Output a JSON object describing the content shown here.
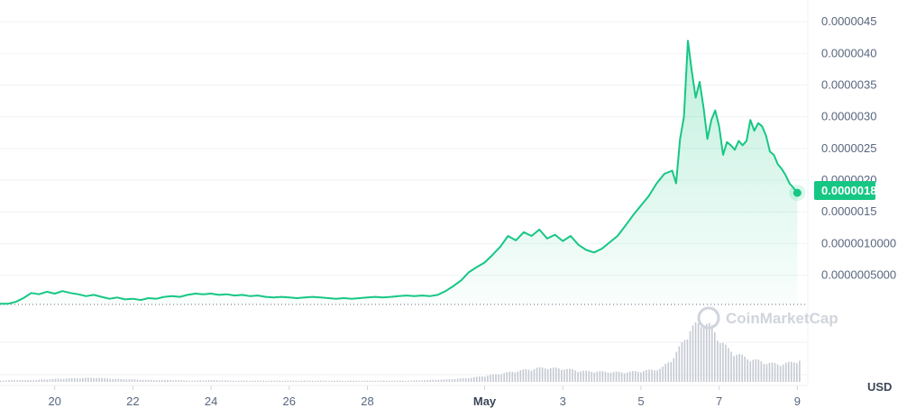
{
  "chart_data": {
    "type": "area",
    "currency_label": "USD",
    "watermark": "CoinMarketCap",
    "current_price_label": "0.0000018",
    "colors": {
      "line": "#16c784",
      "fill_top": "#16c784",
      "volume": "#c5c9d2",
      "badge": "#16c784"
    },
    "y_ticks": [
      "0.0000045",
      "0.0000040",
      "0.0000035",
      "0.0000030",
      "0.0000025",
      "0.0000020",
      "0.0000015",
      "0.0000010000",
      "0.0000005000"
    ],
    "y_tick_values": [
      4.5e-06,
      4e-06,
      3.5e-06,
      3e-06,
      2.5e-06,
      2e-06,
      1.5e-06,
      1e-06,
      5e-07
    ],
    "ylim": [
      4e-08,
      4.7e-06
    ],
    "x_ticks": [
      {
        "label": "20",
        "day": 20
      },
      {
        "label": "22",
        "day": 22
      },
      {
        "label": "24",
        "day": 24
      },
      {
        "label": "26",
        "day": 26
      },
      {
        "label": "28",
        "day": 28
      },
      {
        "label": "May",
        "day": 31,
        "bold": true
      },
      {
        "label": "3",
        "day": 33
      },
      {
        "label": "5",
        "day": 35
      },
      {
        "label": "7",
        "day": 37
      },
      {
        "label": "9",
        "day": 39
      }
    ],
    "xlim": [
      18.6,
      39.2
    ],
    "x_unit": "day (April 18 – May 9, May 1 = 31)",
    "series": [
      {
        "values_x": [
          18.6,
          18.8,
          19.0,
          19.2,
          19.4,
          19.6,
          19.8,
          20.0,
          20.2,
          20.4,
          20.6,
          20.8,
          21.0,
          21.2,
          21.4,
          21.6,
          21.8,
          22.0,
          22.2,
          22.4,
          22.6,
          22.8,
          23.0,
          23.2,
          23.4,
          23.6,
          23.8,
          24.0,
          24.2,
          24.4,
          24.6,
          24.8,
          25.0,
          25.2,
          25.4,
          25.6,
          25.8,
          26.0,
          26.2,
          26.4,
          26.6,
          26.8,
          27.0,
          27.2,
          27.4,
          27.6,
          27.8,
          28.0,
          28.2,
          28.4,
          28.6,
          28.8,
          29.0,
          29.2,
          29.4,
          29.6,
          29.8,
          30.0,
          30.2,
          30.4,
          30.6,
          30.8,
          31.0,
          31.2,
          31.4,
          31.6,
          31.8,
          32.0,
          32.2,
          32.4,
          32.6,
          32.8,
          33.0,
          33.2,
          33.4,
          33.6,
          33.8,
          34.0,
          34.2,
          34.4,
          34.6,
          34.8,
          35.0,
          35.2,
          35.4,
          35.6,
          35.8,
          35.9,
          36.0,
          36.1,
          36.2,
          36.3,
          36.4,
          36.5,
          36.6,
          36.7,
          36.8,
          36.9,
          37.0,
          37.1,
          37.2,
          37.3,
          37.4,
          37.5,
          37.6,
          37.7,
          37.8,
          37.9,
          38.0,
          38.1,
          38.2,
          38.3,
          38.4,
          38.5,
          38.6,
          38.7,
          38.8,
          38.9,
          39.0
        ],
        "values_y": [
          5e-08,
          5e-08,
          8e-08,
          1.4e-07,
          2.2e-07,
          2e-07,
          2.4e-07,
          2.1e-07,
          2.5e-07,
          2.2e-07,
          2e-07,
          1.7e-07,
          1.9e-07,
          1.6e-07,
          1.3e-07,
          1.5e-07,
          1.2e-07,
          1.3e-07,
          1.1e-07,
          1.4e-07,
          1.3e-07,
          1.6e-07,
          1.7e-07,
          1.6e-07,
          1.9e-07,
          2.1e-07,
          2e-07,
          2.1e-07,
          1.9e-07,
          2e-07,
          1.8e-07,
          1.9e-07,
          1.7e-07,
          1.8e-07,
          1.6e-07,
          1.5e-07,
          1.6e-07,
          1.5e-07,
          1.4e-07,
          1.5e-07,
          1.6e-07,
          1.5e-07,
          1.4e-07,
          1.3e-07,
          1.4e-07,
          1.3e-07,
          1.4e-07,
          1.5e-07,
          1.6e-07,
          1.5e-07,
          1.6e-07,
          1.7e-07,
          1.8e-07,
          1.7e-07,
          1.8e-07,
          1.7e-07,
          1.9e-07,
          2.5e-07,
          3.3e-07,
          4.2e-07,
          5.5e-07,
          6.3e-07,
          7e-07,
          8.2e-07,
          9.5e-07,
          1.12e-06,
          1.05e-06,
          1.18e-06,
          1.12e-06,
          1.22e-06,
          1.08e-06,
          1.14e-06,
          1.04e-06,
          1.12e-06,
          9.8e-07,
          9e-07,
          8.6e-07,
          9.2e-07,
          1.02e-06,
          1.12e-06,
          1.28e-06,
          1.45e-06,
          1.6e-06,
          1.75e-06,
          1.95e-06,
          2.1e-06,
          2.15e-06,
          1.95e-06,
          2.65e-06,
          3e-06,
          4.2e-06,
          3.72e-06,
          3.3e-06,
          3.55e-06,
          3.15e-06,
          2.65e-06,
          2.95e-06,
          3.1e-06,
          2.85e-06,
          2.4e-06,
          2.6e-06,
          2.55e-06,
          2.48e-06,
          2.62e-06,
          2.55e-06,
          2.62e-06,
          2.95e-06,
          2.78e-06,
          2.9e-06,
          2.85e-06,
          2.7e-06,
          2.45e-06,
          2.4e-06,
          2.25e-06,
          2.18e-06,
          2.08e-06,
          1.95e-06,
          1.88e-06,
          1.8e-06
        ]
      }
    ],
    "volume": {
      "values_x": [
        18.6,
        19.0,
        19.5,
        20.0,
        20.5,
        21.0,
        21.5,
        22.0,
        22.5,
        23.0,
        23.5,
        24.0,
        24.5,
        25.0,
        25.5,
        26.0,
        26.5,
        27.0,
        27.5,
        28.0,
        28.5,
        29.0,
        29.5,
        30.0,
        30.5,
        31.0,
        31.5,
        32.0,
        32.5,
        33.0,
        33.5,
        34.0,
        34.5,
        35.0,
        35.5,
        35.8,
        36.0,
        36.2,
        36.4,
        36.6,
        36.8,
        37.0,
        37.2,
        37.4,
        37.6,
        37.8,
        38.0,
        38.2,
        38.4,
        38.6,
        38.8,
        39.0
      ],
      "values": [
        0.02,
        0.03,
        0.03,
        0.05,
        0.06,
        0.07,
        0.05,
        0.04,
        0.03,
        0.03,
        0.02,
        0.03,
        0.02,
        0.02,
        0.02,
        0.02,
        0.02,
        0.02,
        0.02,
        0.02,
        0.02,
        0.02,
        0.03,
        0.04,
        0.06,
        0.1,
        0.15,
        0.2,
        0.24,
        0.22,
        0.18,
        0.17,
        0.16,
        0.18,
        0.22,
        0.4,
        0.6,
        0.85,
        0.95,
        1.0,
        0.9,
        0.7,
        0.55,
        0.48,
        0.42,
        0.38,
        0.35,
        0.32,
        0.3,
        0.3,
        0.32,
        0.36
      ]
    }
  }
}
